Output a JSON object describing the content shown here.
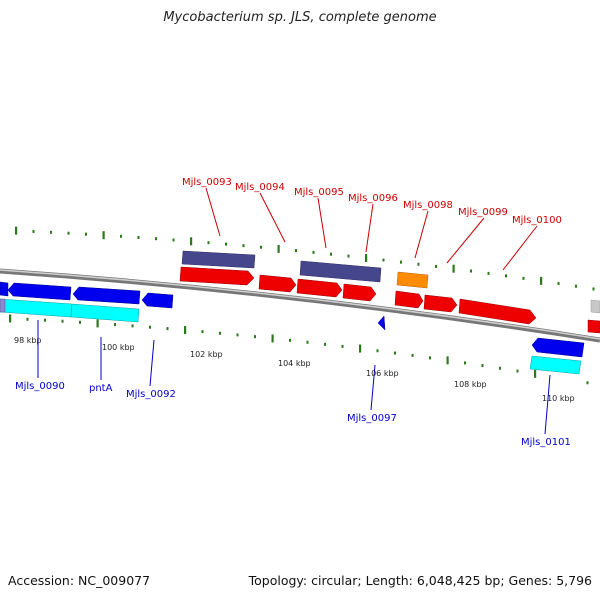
{
  "title": "Mycobacterium sp. JLS, complete genome",
  "footer": {
    "accession": "Accession: NC_009077",
    "summary": "Topology: circular; Length: 6,048,425 bp; Genes: 5,796"
  },
  "colors": {
    "forward_gene_label": "#cc0000",
    "reverse_gene_label": "#0000cc",
    "forward_cds": "#ee0000",
    "reverse_cds": "#0000ee",
    "forward_gene": "#46468c",
    "reverse_gene": "#00ffff",
    "orange_feature": "#ff8c00",
    "tick": "#2a7a1a",
    "backbone": "#888888"
  },
  "scale_labels": [
    "98 kbp",
    "100 kbp",
    "102 kbp",
    "104 kbp",
    "106 kbp",
    "108 kbp",
    "110 kbp"
  ],
  "forward_genes": [
    "Mjls_0093",
    "Mjls_0094",
    "Mjls_0095",
    "Mjls_0096",
    "Mjls_0098",
    "Mjls_0099",
    "Mjls_0100"
  ],
  "reverse_genes": [
    "Mjls_0090",
    "pntA",
    "Mjls_0092",
    "Mjls_0097",
    "Mjls_0101"
  ]
}
